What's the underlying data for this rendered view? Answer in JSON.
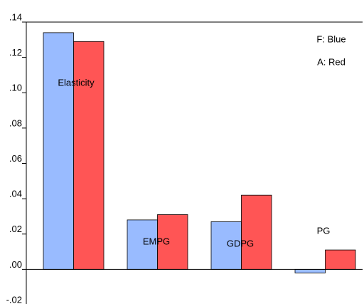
{
  "chart_data": {
    "type": "bar",
    "categories": [
      "Elasticity",
      "EMPG",
      "GDPG",
      "PG"
    ],
    "series": [
      {
        "color": "#99bbff",
        "values": [
          0.134,
          0.028,
          0.027,
          -0.002
        ]
      },
      {
        "color": "#ff5555",
        "values": [
          0.129,
          0.031,
          0.042,
          0.011
        ]
      }
    ],
    "annotations": [
      "F: Blue",
      "A: Red"
    ],
    "ylim": [
      -0.02,
      0.14
    ],
    "yticks": [
      {
        "value": -0.02,
        "label": "-.02"
      },
      {
        "value": 0,
        "label": ".00"
      },
      {
        "value": 0.02,
        "label": ".02"
      },
      {
        "value": 0.04,
        "label": ".04"
      },
      {
        "value": 0.06,
        "label": ".06"
      },
      {
        "value": 0.08,
        "label": ".08"
      },
      {
        "value": 0.1,
        "label": ".10"
      },
      {
        "value": 0.12,
        "label": ".12"
      },
      {
        "value": 0.14,
        "label": ".14"
      }
    ]
  }
}
